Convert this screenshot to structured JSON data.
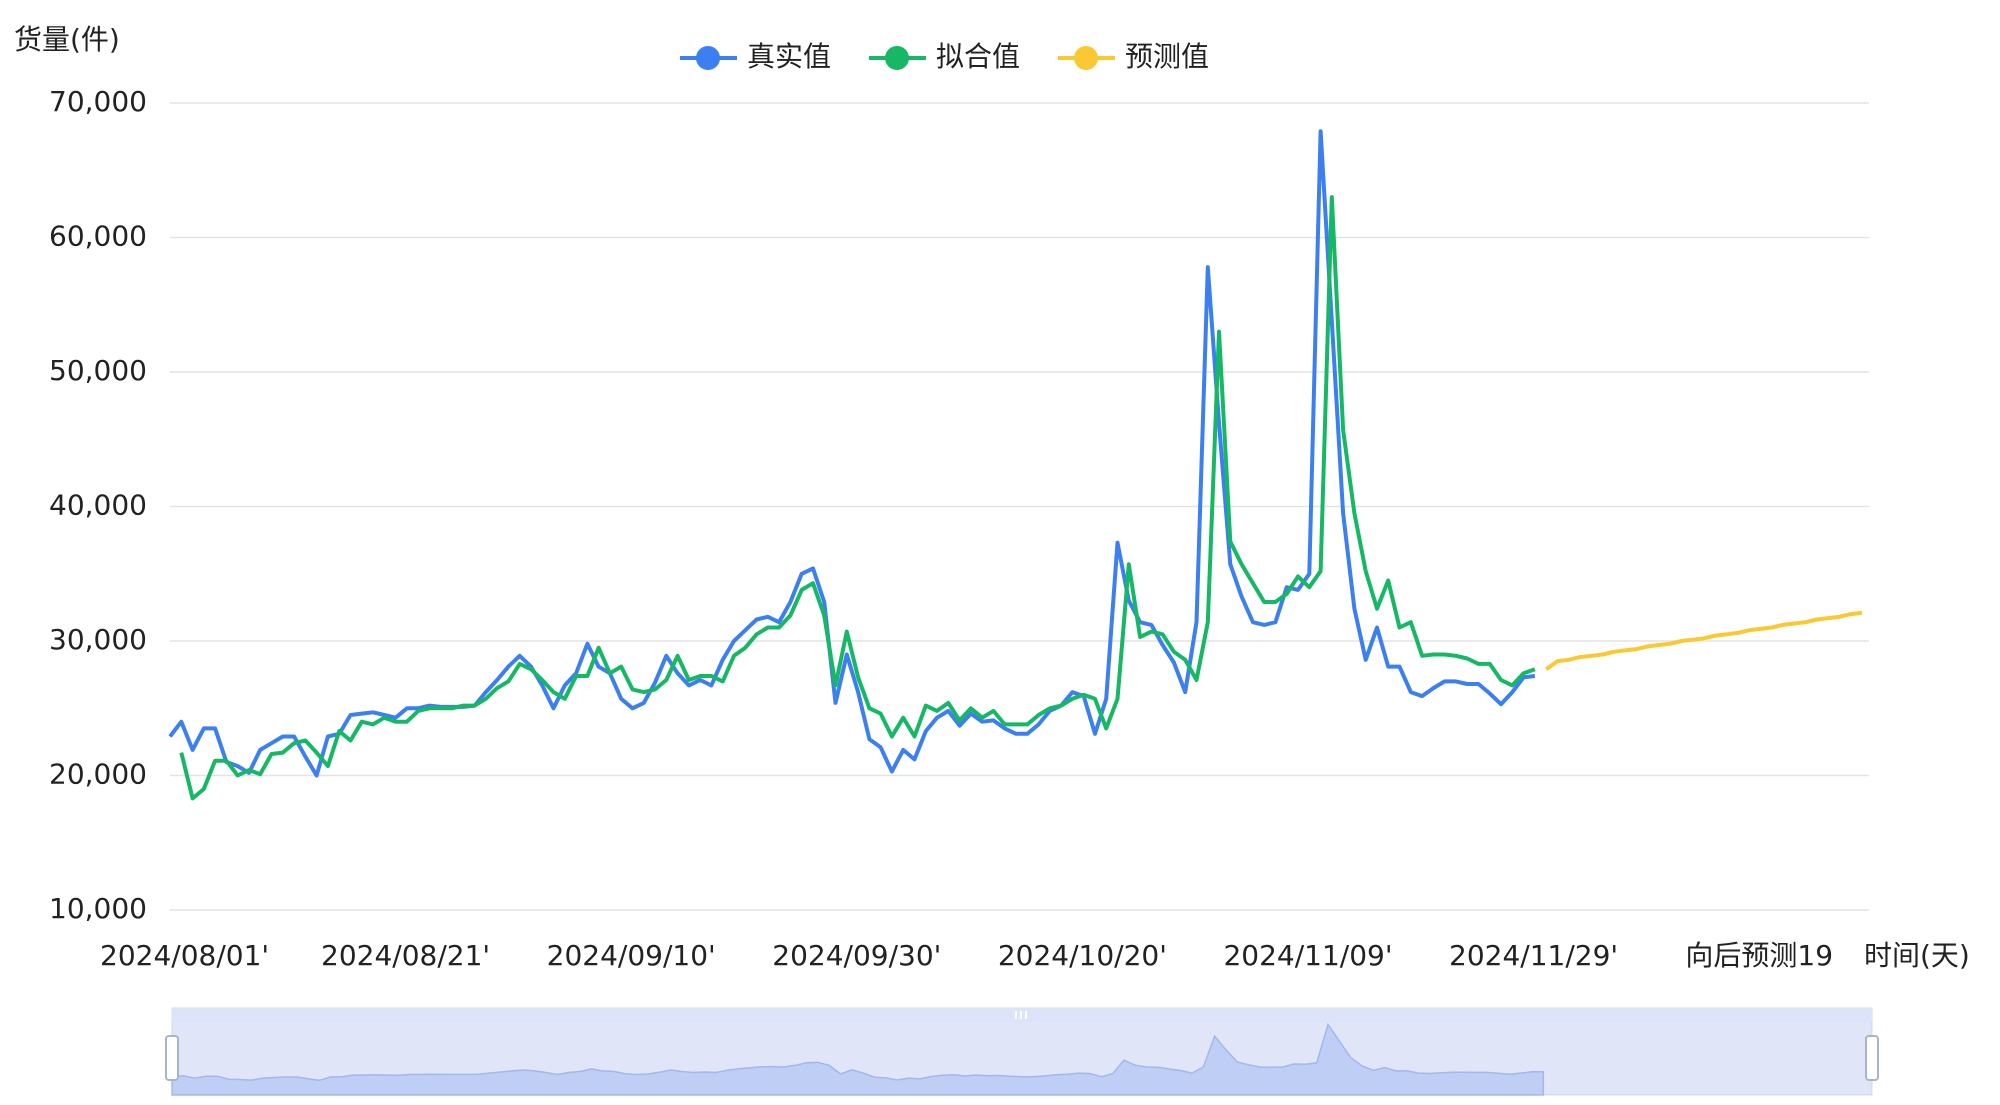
{
  "chart_data": {
    "type": "line",
    "y_label": "货量(件)",
    "x_label": "时间(天)",
    "legend": "top",
    "grid": true,
    "ylim": [
      10000,
      70000
    ],
    "yticks": [
      {
        "value": 10000,
        "label": "10,000"
      },
      {
        "value": 20000,
        "label": "20,000"
      },
      {
        "value": 30000,
        "label": "30,000"
      },
      {
        "value": 40000,
        "label": "40,000"
      },
      {
        "value": 50000,
        "label": "50,000"
      },
      {
        "value": 60000,
        "label": "60,000"
      },
      {
        "value": 70000,
        "label": "70,000"
      }
    ],
    "categories": [
      "2024/08/01'",
      null,
      null,
      null,
      null,
      null,
      null,
      null,
      null,
      null,
      null,
      null,
      null,
      null,
      null,
      null,
      null,
      null,
      null,
      null,
      "2024/08/21'",
      null,
      null,
      null,
      null,
      null,
      null,
      null,
      null,
      null,
      null,
      null,
      null,
      null,
      null,
      null,
      null,
      null,
      null,
      null,
      "2024/09/10'",
      null,
      null,
      null,
      null,
      null,
      null,
      null,
      null,
      null,
      null,
      null,
      null,
      null,
      null,
      null,
      null,
      null,
      null,
      null,
      "2024/09/30'",
      null,
      null,
      null,
      null,
      null,
      null,
      null,
      null,
      null,
      null,
      null,
      null,
      null,
      null,
      null,
      null,
      null,
      null,
      null,
      "2024/10/20'",
      null,
      null,
      null,
      null,
      null,
      null,
      null,
      null,
      null,
      null,
      null,
      null,
      null,
      null,
      null,
      null,
      null,
      null,
      null,
      "2024/11/09'",
      null,
      null,
      null,
      null,
      null,
      null,
      null,
      null,
      null,
      null,
      null,
      null,
      null,
      null,
      null,
      null,
      null,
      null,
      null,
      "2024/11/29'",
      null,
      null,
      null,
      null,
      null,
      null,
      null,
      null,
      null,
      null,
      null,
      null,
      null,
      null,
      null,
      null,
      null,
      null,
      null,
      "向后预测19",
      null,
      null,
      null,
      null,
      null,
      null,
      null,
      null,
      null,
      null
    ],
    "series": [
      {
        "name": "真实值",
        "color": "#3c7ff0",
        "values": [
          22900,
          24000,
          21900,
          23500,
          23500,
          21000,
          20700,
          20200,
          21900,
          22400,
          22900,
          22900,
          21400,
          20000,
          22900,
          23100,
          24500,
          24600,
          24700,
          24500,
          24300,
          25000,
          25000,
          25200,
          25100,
          25100,
          25100,
          25200,
          26200,
          27100,
          28100,
          28900,
          28100,
          26700,
          25000,
          26700,
          27600,
          29800,
          28100,
          27600,
          25700,
          25000,
          25400,
          26900,
          28900,
          27600,
          26700,
          27100,
          26700,
          28600,
          30000,
          30800,
          31600,
          31800,
          31400,
          32900,
          35000,
          35400,
          32900,
          25400,
          29000,
          26200,
          22700,
          22100,
          20300,
          21900,
          21200,
          23300,
          24300,
          24800,
          23700,
          24600,
          24000,
          24100,
          23500,
          23100,
          23100,
          23800,
          24800,
          25200,
          26200,
          25900,
          23100,
          25700,
          37300,
          33000,
          31400,
          31200,
          29700,
          28400,
          26200,
          31400,
          57800,
          46200,
          35700,
          33300,
          31400,
          31200,
          31400,
          34000,
          33800,
          35000,
          67900,
          53800,
          39500,
          32400,
          28600,
          31000,
          28100,
          28100,
          26200,
          25900,
          26500,
          27000,
          27000,
          26800,
          26800,
          26100,
          25300,
          26200,
          27300,
          27400,
          null,
          null,
          null,
          null,
          null,
          null,
          null,
          null,
          null,
          null,
          null,
          null,
          null,
          null,
          null,
          null,
          null,
          null,
          null,
          null,
          null,
          null,
          null,
          null,
          null,
          null,
          null,
          null,
          null
        ]
      },
      {
        "name": "拟合值",
        "color": "#16b866",
        "values": [
          null,
          21700,
          18300,
          19000,
          21100,
          21100,
          20000,
          20400,
          20100,
          21600,
          21700,
          22400,
          22600,
          21700,
          20700,
          23300,
          22600,
          24000,
          23800,
          24300,
          24000,
          24000,
          24800,
          25000,
          25000,
          25000,
          25200,
          25200,
          25700,
          26500,
          27000,
          28300,
          27900,
          27100,
          26200,
          25700,
          27400,
          27400,
          29500,
          27600,
          28100,
          26400,
          26200,
          26400,
          27100,
          28900,
          27100,
          27400,
          27400,
          27000,
          28900,
          29500,
          30500,
          31000,
          31000,
          31900,
          33800,
          34300,
          31900,
          26700,
          30700,
          27300,
          25000,
          24600,
          22900,
          24300,
          22900,
          25200,
          24800,
          25400,
          24100,
          25000,
          24300,
          24800,
          23800,
          23800,
          23800,
          24500,
          25000,
          25200,
          25700,
          26000,
          25700,
          23500,
          25700,
          35700,
          30300,
          30700,
          30500,
          29200,
          28600,
          27100,
          31400,
          53000,
          37400,
          35700,
          34300,
          32900,
          32900,
          33500,
          34800,
          34000,
          35200,
          63000,
          45700,
          39500,
          35200,
          32400,
          34500,
          31000,
          31400,
          28900,
          29000,
          29000,
          28900,
          28700,
          28300,
          28300,
          27100,
          26700,
          27600,
          27900,
          null,
          null,
          null,
          null,
          null,
          null,
          null,
          null,
          null,
          null,
          null,
          null,
          null,
          null,
          null,
          null,
          null,
          null,
          null,
          null,
          null,
          null,
          null,
          null,
          null,
          null,
          null,
          null,
          null
        ]
      },
      {
        "name": "预测值",
        "color": "#fac832",
        "values": [
          null,
          null,
          null,
          null,
          null,
          null,
          null,
          null,
          null,
          null,
          null,
          null,
          null,
          null,
          null,
          null,
          null,
          null,
          null,
          null,
          null,
          null,
          null,
          null,
          null,
          null,
          null,
          null,
          null,
          null,
          null,
          null,
          null,
          null,
          null,
          null,
          null,
          null,
          null,
          null,
          null,
          null,
          null,
          null,
          null,
          null,
          null,
          null,
          null,
          null,
          null,
          null,
          null,
          null,
          null,
          null,
          null,
          null,
          null,
          null,
          null,
          null,
          null,
          null,
          null,
          null,
          null,
          null,
          null,
          null,
          null,
          null,
          null,
          null,
          null,
          null,
          null,
          null,
          null,
          null,
          null,
          null,
          null,
          null,
          null,
          null,
          null,
          null,
          null,
          null,
          null,
          null,
          null,
          null,
          null,
          null,
          null,
          null,
          null,
          null,
          null,
          null,
          null,
          null,
          null,
          null,
          null,
          null,
          null,
          null,
          null,
          null,
          null,
          null,
          null,
          null,
          null,
          null,
          null,
          null,
          null,
          null,
          27900,
          28500,
          28600,
          28800,
          28900,
          29000,
          29200,
          29300,
          29400,
          29600,
          29700,
          29800,
          30000,
          30100,
          30200,
          30400,
          30500,
          30600,
          30800,
          30900,
          31000,
          31200,
          31300,
          31400,
          31600,
          31700,
          31800,
          32000,
          32100
        ]
      }
    ]
  }
}
